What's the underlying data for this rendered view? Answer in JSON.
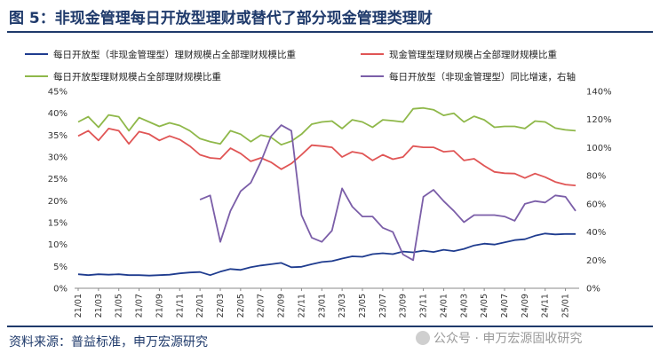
{
  "title": "图 5：非现金管理每日开放型理财或替代了部分现金管理类理财",
  "source": "资料来源：普益标准，申万宏源研究",
  "watermark": "公众号 · 申万宏源固收研究",
  "colors": {
    "title": "#1f3a6b",
    "blue": "#1f3c8f",
    "red": "#e05555",
    "green": "#8fb84a",
    "purple": "#7b5ea8"
  },
  "chart_data": {
    "type": "line",
    "title": "",
    "x_ticks": [
      "21/01",
      "21/03",
      "21/05",
      "21/07",
      "21/09",
      "21/11",
      "22/01",
      "22/03",
      "22/05",
      "22/07",
      "22/09",
      "22/11",
      "23/01",
      "23/03",
      "23/05",
      "23/07",
      "23/09",
      "23/11",
      "24/01",
      "24/03",
      "24/05",
      "24/07",
      "24/09",
      "24/11",
      "25/01"
    ],
    "y_left": {
      "min": 0,
      "max": 45,
      "ticks": [
        "0%",
        "5%",
        "10%",
        "15%",
        "20%",
        "25%",
        "30%",
        "35%",
        "40%",
        "45%"
      ]
    },
    "y_right": {
      "min": 0,
      "max": 140,
      "ticks": [
        "0%",
        "20%",
        "40%",
        "60%",
        "80%",
        "100%",
        "120%",
        "140%"
      ]
    },
    "legend": [
      "每日开放型（非现金管理型）理财规模占全部理财规模比重",
      "现金管理型理财规模占全部理财规模比重",
      "每日开放型理财规模占全部理财规模比重",
      "每日开放型（非现金管理型）同比增速，右轴"
    ],
    "grid": false,
    "series": [
      {
        "name": "每日开放型（非现金管理型）理财规模占全部理财规模比重",
        "axis": "left",
        "color": "#1f3c8f",
        "start": 0,
        "values": [
          3.2,
          3.0,
          3.2,
          3.1,
          3.2,
          3.0,
          3.0,
          2.9,
          3.0,
          3.1,
          3.4,
          3.6,
          3.7,
          3.0,
          3.8,
          4.4,
          4.2,
          4.8,
          5.2,
          5.5,
          5.8,
          4.8,
          4.9,
          5.5,
          6.0,
          6.2,
          6.8,
          7.3,
          7.2,
          7.8,
          8.0,
          7.8,
          8.4,
          8.2,
          8.6,
          8.3,
          8.8,
          8.5,
          9.0,
          9.8,
          10.2,
          10.0,
          10.5,
          11.0,
          11.2,
          12.0,
          12.5,
          12.3,
          12.4,
          12.4
        ]
      },
      {
        "name": "现金管理型理财规模占全部理财规模比重",
        "axis": "left",
        "color": "#e05555",
        "start": 0,
        "values": [
          34.8,
          36.0,
          33.8,
          36.5,
          36.0,
          33.0,
          35.8,
          35.2,
          33.8,
          34.8,
          34.0,
          32.5,
          30.5,
          29.8,
          29.6,
          32.0,
          30.8,
          29.0,
          29.8,
          28.8,
          27.2,
          28.5,
          30.5,
          32.7,
          32.5,
          32.2,
          30.0,
          31.2,
          30.8,
          29.2,
          30.5,
          29.5,
          30.0,
          32.5,
          32.2,
          32.2,
          31.2,
          31.4,
          29.2,
          29.6,
          28.0,
          26.6,
          26.3,
          26.2,
          25.2,
          26.2,
          25.4,
          24.3,
          23.7,
          23.5
        ]
      },
      {
        "name": "每日开放型理财规模占全部理财规模比重",
        "axis": "left",
        "color": "#8fb84a",
        "start": 0,
        "values": [
          38.0,
          39.2,
          36.8,
          39.6,
          39.2,
          36.0,
          39.0,
          38.0,
          37.0,
          37.8,
          37.2,
          36.0,
          34.2,
          33.5,
          33.0,
          36.0,
          35.2,
          33.5,
          35.0,
          34.5,
          32.8,
          33.6,
          35.2,
          37.5,
          38.0,
          38.2,
          36.5,
          38.5,
          38.0,
          36.8,
          38.5,
          38.3,
          38.0,
          41.0,
          41.2,
          40.8,
          39.5,
          40.0,
          38.0,
          39.3,
          38.5,
          36.8,
          37.0,
          37.0,
          36.5,
          38.2,
          38.0,
          36.6,
          36.2,
          36.0
        ]
      },
      {
        "name": "每日开放型（非现金管理型）同比增速，右轴",
        "axis": "right",
        "color": "#7b5ea8",
        "start": 12,
        "values": [
          63,
          66,
          33,
          55,
          69,
          75,
          90,
          108,
          116,
          112,
          52,
          36,
          33,
          41,
          71,
          58,
          51,
          51,
          43,
          40,
          24,
          20,
          65,
          70,
          62,
          55,
          47,
          52,
          52,
          52,
          51,
          48,
          60,
          62,
          61,
          66,
          65,
          55
        ]
      }
    ]
  }
}
